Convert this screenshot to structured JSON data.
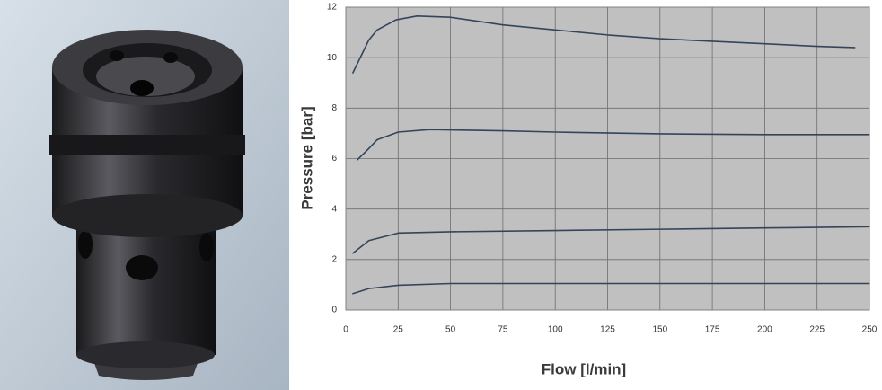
{
  "chart_data": {
    "type": "line",
    "y_label": "Pressure [bar]",
    "x_label": "Flow [l/min]",
    "xlim": [
      0,
      250
    ],
    "xticks": [
      0,
      25,
      50,
      75,
      100,
      125,
      150,
      175,
      200,
      225,
      250
    ],
    "ylim": [
      0,
      12
    ],
    "yticks": [
      0,
      2,
      4,
      6,
      8,
      10,
      12
    ],
    "grid": true,
    "series": [
      {
        "color": "#34455a",
        "x": [
          3.4,
          11,
          15,
          24,
          34,
          50,
          75,
          100,
          125,
          150,
          175,
          200,
          225,
          243
        ],
        "values": [
          9.4,
          10.7,
          11.1,
          11.5,
          11.65,
          11.6,
          11.3,
          11.1,
          10.9,
          10.75,
          10.65,
          10.55,
          10.45,
          10.4
        ]
      },
      {
        "color": "#34455a",
        "x": [
          5.5,
          11,
          15,
          25,
          40,
          75,
          100,
          150,
          200,
          250
        ],
        "values": [
          5.95,
          6.4,
          6.75,
          7.05,
          7.15,
          7.1,
          7.05,
          6.98,
          6.95,
          6.95
        ]
      },
      {
        "color": "#34455a",
        "x": [
          3.4,
          11,
          25,
          50,
          100,
          150,
          200,
          250
        ],
        "values": [
          2.25,
          2.75,
          3.05,
          3.1,
          3.15,
          3.2,
          3.25,
          3.3
        ]
      },
      {
        "color": "#34455a",
        "x": [
          3.4,
          11,
          25,
          50,
          100,
          150,
          200,
          250
        ],
        "values": [
          0.65,
          0.85,
          0.98,
          1.05,
          1.05,
          1.05,
          1.05,
          1.05
        ]
      }
    ]
  }
}
